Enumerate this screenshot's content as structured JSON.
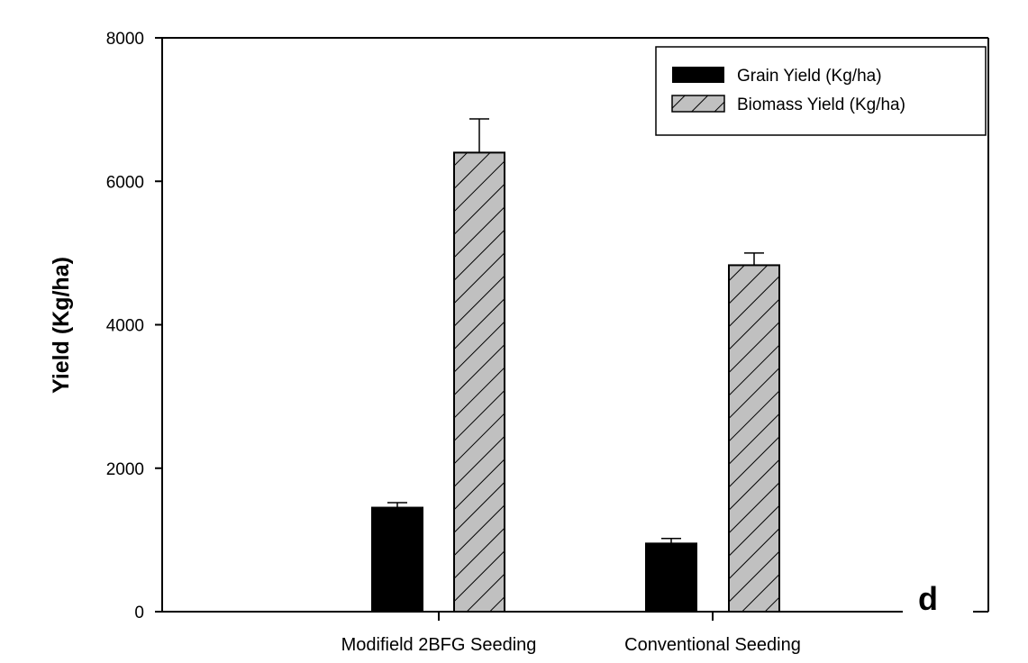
{
  "chart_data": {
    "type": "bar",
    "categories": [
      "Modifield 2BFG Seeding",
      "Conventional Seeding"
    ],
    "series": [
      {
        "name": "Grain Yield (Kg/ha)",
        "values": [
          1450,
          950
        ],
        "errors": [
          70,
          70
        ],
        "fill": "#000000",
        "pattern": "solid"
      },
      {
        "name": "Biomass Yield (Kg/ha)",
        "values": [
          6400,
          4830
        ],
        "errors": [
          470,
          170
        ],
        "fill": "#c0c0c0",
        "pattern": "diagonal-hatch"
      }
    ],
    "ylabel": "Yield (Kg/ha)",
    "xlabel": "",
    "ylim": [
      0,
      8000
    ],
    "yticks": [
      "0",
      "2000",
      "4000",
      "6000",
      "8000"
    ],
    "grid": false,
    "legend_position": "top-right",
    "panel_label": "d"
  }
}
